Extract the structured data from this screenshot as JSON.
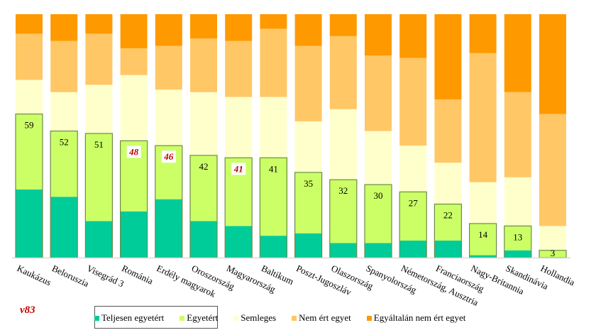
{
  "chart_data": {
    "type": "bar",
    "stacked": true,
    "percent_stacked": true,
    "title": "",
    "xlabel": "",
    "ylabel": "",
    "ylim": [
      0,
      100
    ],
    "grid": false,
    "legend_position": "bottom",
    "categories": [
      "Kaukázus",
      "Beloruszia",
      "Visegrád 3",
      "Románia",
      "Erdély magyarok",
      "Oroszország",
      "Magyarország",
      "Baltikum",
      "Poszt-Jugoszláv",
      "Olaszország",
      "Spanyolország",
      "Németország, Ausztria",
      "Franciaország",
      "Nagy-Britannia",
      "Skandinávia",
      "Hollandia"
    ],
    "series": [
      {
        "name": "Teljesen egyetért",
        "color": "#00cc99",
        "values": [
          28,
          25,
          15,
          19,
          24,
          15,
          13,
          9,
          10,
          6,
          6,
          7,
          7,
          1,
          3,
          0
        ]
      },
      {
        "name": "Egyetért",
        "color": "#ccff66",
        "values": [
          31,
          27,
          36,
          29,
          22,
          27,
          28,
          32,
          25,
          26,
          24,
          20,
          15,
          13,
          10,
          3
        ]
      },
      {
        "name": "Semleges",
        "color": "#ffffcc",
        "values": [
          14,
          16,
          20,
          27,
          23,
          26,
          25,
          25,
          21,
          29,
          22,
          19,
          17,
          17,
          20,
          10
        ]
      },
      {
        "name": "Nem ért egyet",
        "color": "#ffc766",
        "values": [
          19,
          21,
          21,
          11,
          18,
          22,
          23,
          28,
          31,
          30,
          31,
          36,
          26,
          53,
          35,
          46
        ]
      },
      {
        "name": "Egyáltalán nem ért egyet",
        "color": "#ff9900",
        "values": [
          8,
          11,
          8,
          14,
          13,
          10,
          11,
          6,
          13,
          9,
          17,
          18,
          35,
          16,
          32,
          41
        ]
      }
    ],
    "agree_total_labels": [
      59,
      52,
      51,
      48,
      46,
      42,
      41,
      41,
      35,
      32,
      30,
      27,
      22,
      14,
      13,
      3
    ],
    "highlighted_labels": [
      "Románia",
      "Erdély magyarok",
      "Magyarország"
    ],
    "highlight_color": "#c00000"
  },
  "code_label": "v83"
}
